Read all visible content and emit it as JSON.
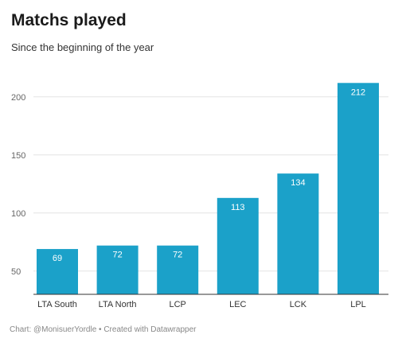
{
  "chart_data": {
    "type": "bar",
    "title": "Matchs played",
    "subtitle": "Since the beginning of the year",
    "categories": [
      "LTA South",
      "LTA North",
      "LCP",
      "LEC",
      "LCK",
      "LPL"
    ],
    "values": [
      69,
      72,
      72,
      113,
      134,
      212
    ],
    "ylim": [
      30,
      230
    ],
    "yticks": [
      50,
      100,
      150,
      200
    ],
    "grid": true,
    "bar_color": "#1ba1c9",
    "label_color": "#ffffff"
  },
  "footer": {
    "notes": "Chart: @MonisuerYordle • Created with Datawrapper"
  }
}
